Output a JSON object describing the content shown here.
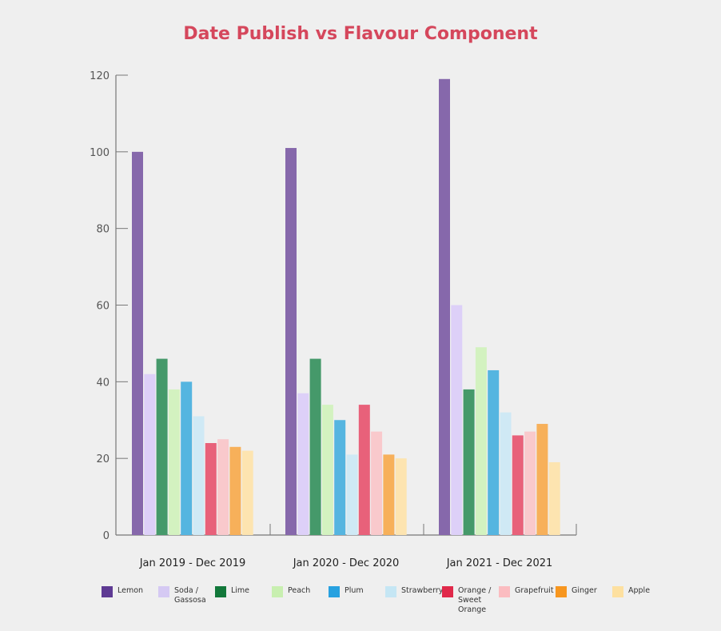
{
  "chart_data": {
    "type": "bar",
    "title": "Date Publish vs Flavour Component",
    "xlabel": "",
    "ylabel": "",
    "ylim": [
      0,
      120
    ],
    "yticks": [
      0,
      20,
      40,
      60,
      80,
      100,
      120
    ],
    "grid": false,
    "legend_position": "bottom",
    "categories": [
      "Jan 2019 - Dec 2019",
      "Jan 2020 - Dec 2020",
      "Jan 2021 - Dec 2021"
    ],
    "series": [
      {
        "name": "Lemon",
        "color": "#8668ab",
        "legend_color": "#5e3a93",
        "values": [
          100,
          101,
          119
        ]
      },
      {
        "name": "Soda / Gassosa",
        "color": "#ddd0f8",
        "legend_color": "#d5c9f3",
        "values": [
          42,
          37,
          60
        ]
      },
      {
        "name": "Lime",
        "color": "#45996a",
        "legend_color": "#12783a",
        "values": [
          46,
          46,
          38
        ]
      },
      {
        "name": "Peach",
        "color": "#d3f2c0",
        "legend_color": "#c8efb0",
        "values": [
          38,
          34,
          49
        ]
      },
      {
        "name": "Plum",
        "color": "#55b5e0",
        "legend_color": "#27a1e0",
        "values": [
          40,
          30,
          43
        ]
      },
      {
        "name": "Strawberry",
        "color": "#cfe9f5",
        "legend_color": "#c5e6f4",
        "values": [
          31,
          21,
          32
        ]
      },
      {
        "name": "Orange / Sweet Orange",
        "color": "#e8617a",
        "legend_color": "#e0294a",
        "values": [
          24,
          34,
          26
        ]
      },
      {
        "name": "Grapefruit",
        "color": "#f9c9cc",
        "legend_color": "#fbbcc0",
        "values": [
          25,
          27,
          27
        ]
      },
      {
        "name": "Ginger",
        "color": "#f7b05a",
        "legend_color": "#f7961f",
        "values": [
          23,
          21,
          29
        ]
      },
      {
        "name": "Apple",
        "color": "#fde4b0",
        "legend_color": "#fde0a0",
        "values": [
          22,
          20,
          19
        ]
      }
    ]
  }
}
